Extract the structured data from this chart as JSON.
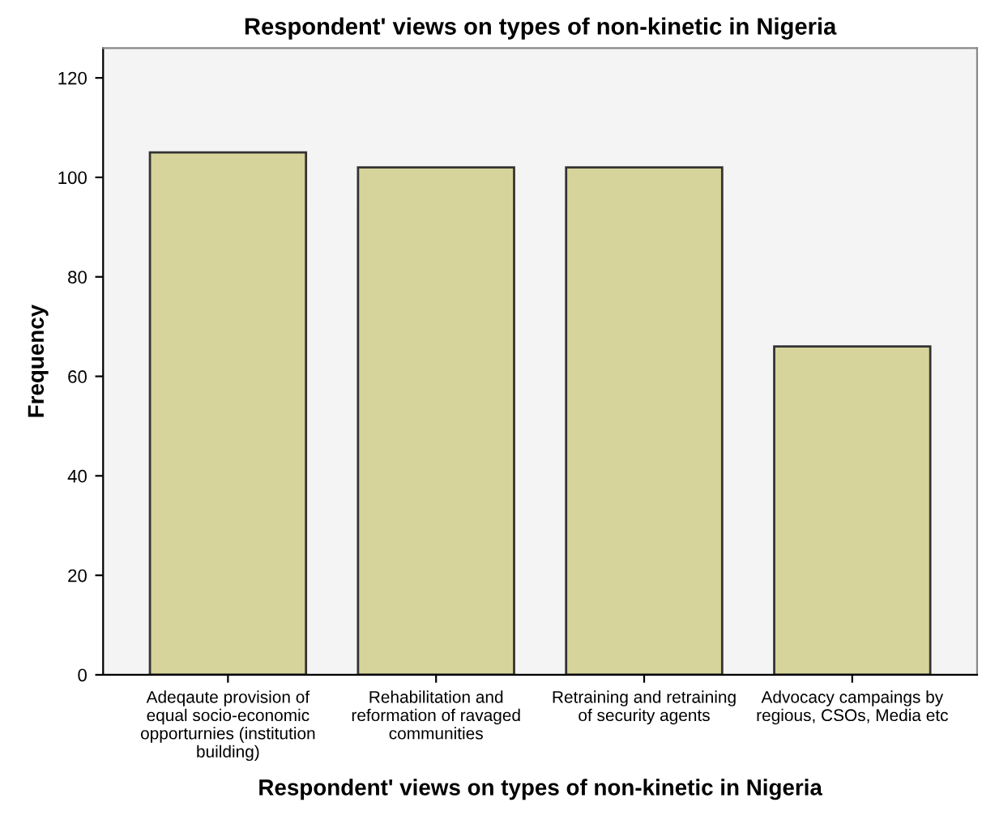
{
  "chart_data": {
    "type": "bar",
    "title": "Respondent' views on types of non-kinetic in Nigeria",
    "xlabel": "Respondent' views on types of non-kinetic in Nigeria",
    "ylabel": "Frequency",
    "categories": [
      "Adeqaute provision of\nequal socio-economic\nopporturnies (institution\nbuilding)",
      "Rehabilitation and\nreformation of ravaged\ncommunities",
      "Retraining and retraining\nof security agents",
      "Advocacy campaings by\nregious, CSOs, Media etc"
    ],
    "values": [
      105,
      102,
      102,
      66
    ],
    "color": "#d6d49a",
    "ylim": [
      0,
      126
    ],
    "yticks": [
      0,
      20,
      40,
      60,
      80,
      100,
      120
    ],
    "grid": false,
    "legend": false
  }
}
